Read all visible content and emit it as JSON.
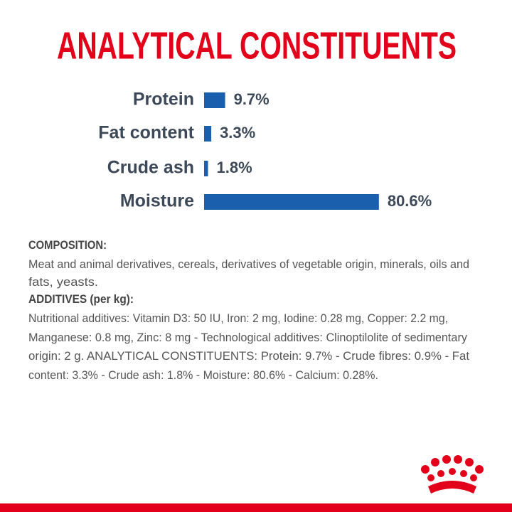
{
  "chart_data": {
    "type": "bar",
    "orientation": "horizontal",
    "title": "ANALYTICAL CONSTITUENTS",
    "categories": [
      "Protein",
      "Fat content",
      "Crude ash",
      "Moisture"
    ],
    "values": [
      9.7,
      3.3,
      1.8,
      80.6
    ],
    "value_labels": [
      "9.7%",
      "3.3%",
      "1.8%",
      "80.6%"
    ],
    "color": "#1a5fad",
    "title_color": "#e2001a"
  },
  "composition": {
    "heading": "COMPOSITION:",
    "lines": [
      "Meat and animal derivatives, cereals, derivatives of vegetable origin, minerals, oils and",
      "fats, yeasts."
    ]
  },
  "additives": {
    "heading": "ADDITIVES (per kg):",
    "lines": [
      "Nutritional additives: Vitamin D3: 50 IU, Iron: 2 mg, Iodine: 0.28 mg, Copper: 2.2 mg,",
      "Manganese: 0.8 mg, Zinc: 8 mg - Technological additives: Clinoptilolite of sedimentary",
      "origin: 2 g. ANALYTICAL CONSTITUENTS: Protein: 9.7% - Crude fibres: 0.9% - Fat",
      "content: 3.3% - Crude ash: 1.8% - Moisture: 80.6% - Calcium: 0.28%."
    ]
  }
}
